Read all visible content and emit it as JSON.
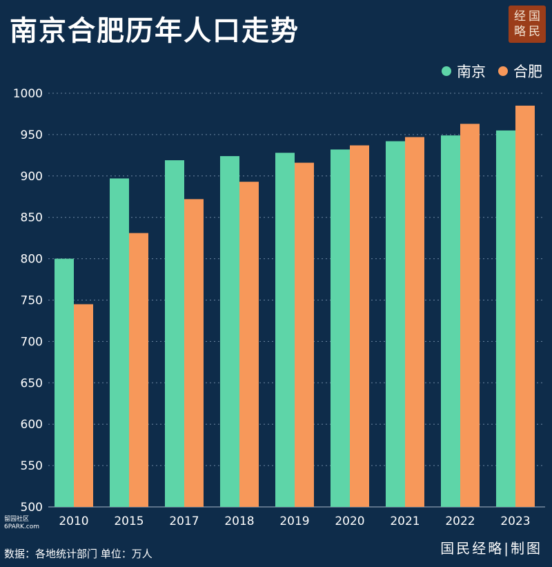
{
  "title": "南京合肥历年人口走势",
  "logo": {
    "chars": [
      "经",
      "国",
      "略",
      "民"
    ],
    "color": "#9b3d1a"
  },
  "legend": [
    {
      "name": "南京",
      "color": "#5ed5a8"
    },
    {
      "name": "合肥",
      "color": "#f7985a"
    }
  ],
  "footer": {
    "source": "数据：各地统计部门  单位：万人",
    "credit": "国民经略|制图",
    "watermark_line1": "留园社区",
    "watermark_line2": "6PARK.com"
  },
  "chart_data": {
    "type": "bar",
    "categories": [
      "2010",
      "2015",
      "2017",
      "2018",
      "2019",
      "2020",
      "2021",
      "2022",
      "2023"
    ],
    "series": [
      {
        "name": "南京",
        "color": "#5ed5a8",
        "values": [
          800,
          897,
          919,
          924,
          928,
          932,
          942,
          949,
          955
        ]
      },
      {
        "name": "合肥",
        "color": "#f7985a",
        "values": [
          745,
          831,
          872,
          893,
          916,
          937,
          947,
          963,
          985
        ]
      }
    ],
    "ylim": [
      500,
      1000
    ],
    "yticks": [
      500,
      550,
      600,
      650,
      700,
      750,
      800,
      850,
      900,
      950,
      1000
    ],
    "grid": true,
    "legend_position": "top-right"
  }
}
